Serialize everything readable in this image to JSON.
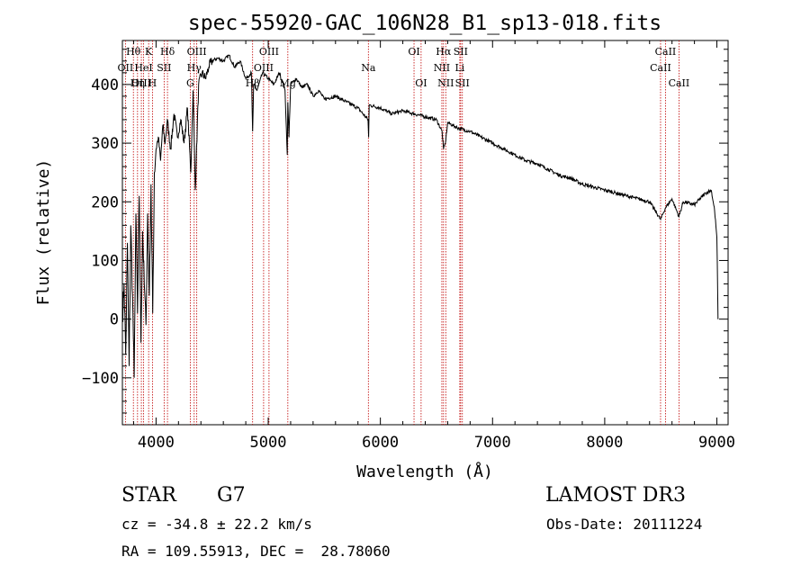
{
  "chart_data": {
    "type": "line",
    "title": "spec-55920-GAC_106N28_B1_sp13-018.fits",
    "xlabel": "Wavelength (Å)",
    "ylabel": "Flux (relative)",
    "xlim": [
      3700,
      9100
    ],
    "ylim": [
      -180,
      475
    ],
    "xticks": [
      4000,
      5000,
      6000,
      7000,
      8000,
      9000
    ],
    "yticks": [
      -100,
      0,
      100,
      200,
      300,
      400
    ],
    "series": [
      {
        "name": "flux",
        "x": [
          3700,
          3715,
          3730,
          3745,
          3760,
          3775,
          3790,
          3805,
          3820,
          3835,
          3850,
          3865,
          3880,
          3895,
          3910,
          3925,
          3940,
          3955,
          3970,
          3985,
          4000,
          4020,
          4040,
          4060,
          4080,
          4100,
          4130,
          4160,
          4190,
          4220,
          4250,
          4280,
          4310,
          4330,
          4350,
          4380,
          4410,
          4440,
          4470,
          4500,
          4550,
          4600,
          4650,
          4700,
          4750,
          4800,
          4850,
          4861,
          4870,
          4900,
          4950,
          5000,
          5050,
          5100,
          5150,
          5170,
          5175,
          5185,
          5200,
          5250,
          5300,
          5350,
          5400,
          5450,
          5500,
          5600,
          5700,
          5800,
          5890,
          5895,
          5900,
          6000,
          6100,
          6200,
          6300,
          6400,
          6500,
          6550,
          6563,
          6580,
          6600,
          6700,
          6800,
          6900,
          7000,
          7100,
          7200,
          7300,
          7400,
          7500,
          7600,
          7700,
          7800,
          7900,
          8000,
          8100,
          8200,
          8300,
          8400,
          8498,
          8542,
          8600,
          8662,
          8700,
          8800,
          8900,
          8950,
          8980,
          9000,
          9010
        ],
        "y": [
          0,
          60,
          -60,
          130,
          -80,
          160,
          40,
          -100,
          180,
          10,
          210,
          -40,
          150,
          60,
          -10,
          180,
          40,
          230,
          10,
          250,
          290,
          310,
          270,
          330,
          300,
          340,
          290,
          350,
          310,
          340,
          300,
          360,
          250,
          390,
          220,
          400,
          420,
          410,
          430,
          440,
          445,
          440,
          450,
          430,
          440,
          410,
          420,
          320,
          400,
          390,
          420,
          410,
          400,
          420,
          390,
          280,
          370,
          310,
          400,
          410,
          395,
          400,
          380,
          390,
          375,
          380,
          370,
          360,
          340,
          310,
          365,
          360,
          350,
          355,
          350,
          345,
          340,
          320,
          290,
          300,
          335,
          325,
          320,
          310,
          300,
          290,
          280,
          270,
          265,
          255,
          245,
          240,
          230,
          225,
          220,
          215,
          210,
          205,
          200,
          170,
          190,
          205,
          175,
          200,
          195,
          215,
          220,
          185,
          140,
          0
        ]
      }
    ],
    "lines": [
      {
        "label": "Hθ",
        "x": 3798,
        "row": 0
      },
      {
        "label": "OII",
        "x": 3727,
        "row": 1
      },
      {
        "label": "OIII",
        "x": 3869,
        "row": 2
      },
      {
        "label": "Hη",
        "x": 3835,
        "row": 2
      },
      {
        "label": "K",
        "x": 3934,
        "row": 0
      },
      {
        "label": "HeI",
        "x": 3889,
        "row": 1
      },
      {
        "label": "SII",
        "x": 4072,
        "row": 1
      },
      {
        "label": "H",
        "x": 3968,
        "row": 2
      },
      {
        "label": "Hδ",
        "x": 4102,
        "row": 0
      },
      {
        "label": "OIII",
        "x": 4363,
        "row": 0
      },
      {
        "label": "Hγ",
        "x": 4340,
        "row": 1
      },
      {
        "label": "G",
        "x": 4305,
        "row": 2
      },
      {
        "label": "OIII",
        "x": 5007,
        "row": 0
      },
      {
        "label": "OIII",
        "x": 4959,
        "row": 1
      },
      {
        "label": "Hβ",
        "x": 4861,
        "row": 2
      },
      {
        "label": "Mg",
        "x": 5175,
        "row": 2
      },
      {
        "label": "Na",
        "x": 5893,
        "row": 1
      },
      {
        "label": "OI",
        "x": 6300,
        "row": 0
      },
      {
        "label": "OI",
        "x": 6363,
        "row": 2
      },
      {
        "label": "Hα",
        "x": 6563,
        "row": 0
      },
      {
        "label": "NII",
        "x": 6548,
        "row": 1
      },
      {
        "label": "NII",
        "x": 6583,
        "row": 2
      },
      {
        "label": "SII",
        "x": 6716,
        "row": 0
      },
      {
        "label": "Li",
        "x": 6708,
        "row": 1
      },
      {
        "label": "SII",
        "x": 6731,
        "row": 2
      },
      {
        "label": "CaII",
        "x": 8498,
        "row": 1
      },
      {
        "label": "CaII",
        "x": 8542,
        "row": 0
      },
      {
        "label": "CaII",
        "x": 8662,
        "row": 2
      }
    ],
    "line_color": "#c00000"
  },
  "footer": {
    "object_class": "STAR",
    "subclass": "G7",
    "survey": "LAMOST DR3",
    "redshift": "cz = -34.8 ± 22.2 km/s",
    "obs_date": "Obs-Date: 20111224",
    "coords": "RA = 109.55913, DEC =  28.78060"
  }
}
